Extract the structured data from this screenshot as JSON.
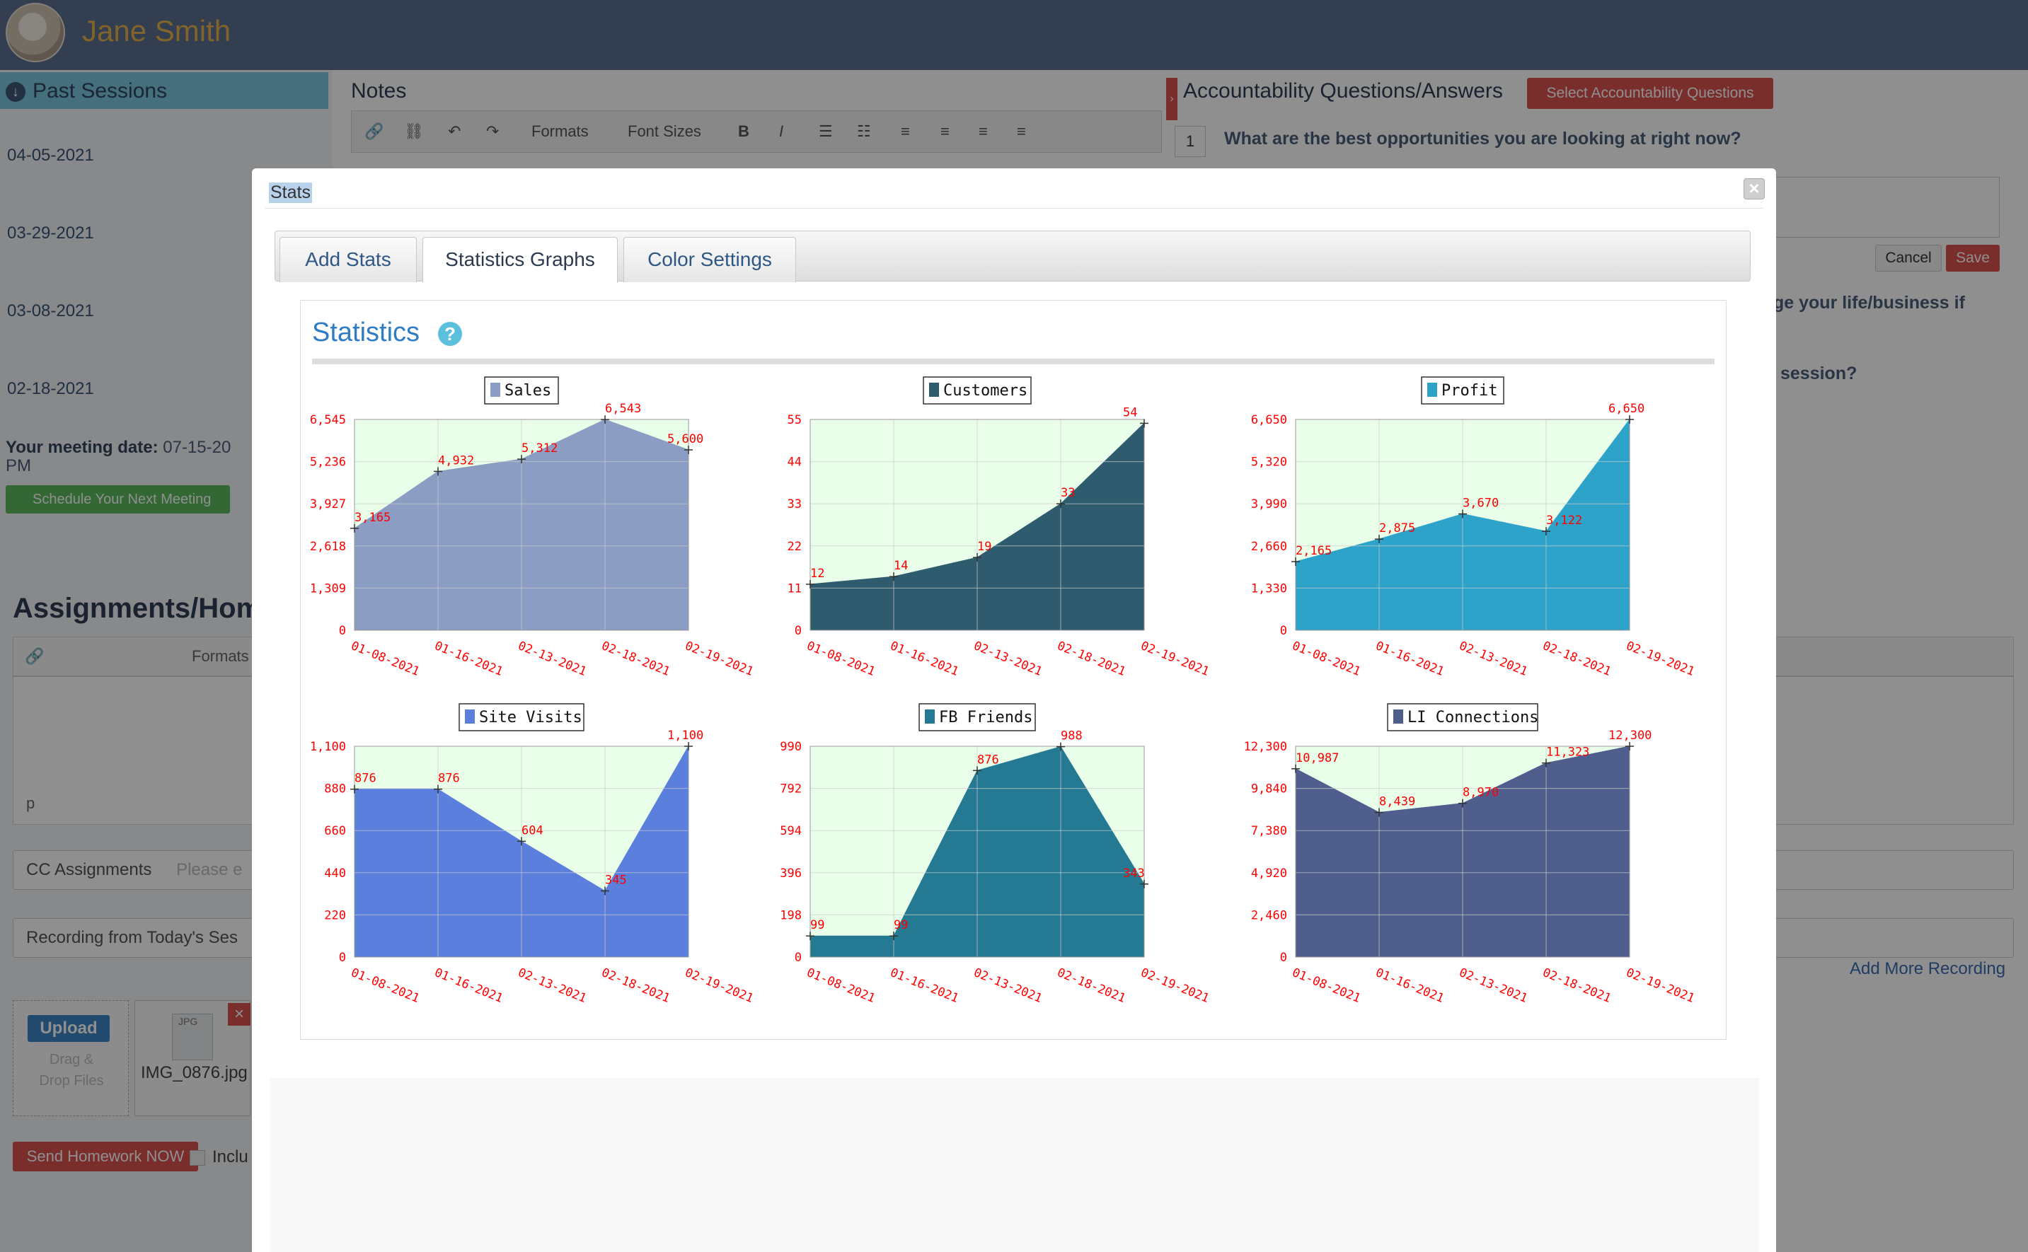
{
  "header": {
    "user_name": "Jane Smith"
  },
  "left": {
    "past_sessions_title": "Past Sessions",
    "sessions": [
      "04-05-2021",
      "03-29-2021",
      "03-08-2021",
      "02-18-2021"
    ],
    "meeting_label": "Your meeting date:",
    "meeting_value": "07-15-20",
    "meeting_suffix": "PM",
    "schedule_button": "Schedule Your Next Meeting",
    "assignments_title": "Assignments/Hom",
    "editor_formats": "Formats",
    "editor_path": "p",
    "cc_label": "CC Assignments",
    "cc_placeholder": "Please e",
    "recording_value": "Recording from Today's Ses",
    "upload_button": "Upload",
    "drag_line1": "Drag &",
    "drag_line2": "Drop Files",
    "file_name": "IMG_0876.jpg",
    "file_type": "JPG",
    "send_button": "Send Homework NOW",
    "include_label": "Inclu"
  },
  "notes": {
    "title": "Notes",
    "formats": "Formats",
    "font_sizes": "Font Sizes"
  },
  "accountability": {
    "title": "Accountability Questions/Answers",
    "select_button": "Select Accountability Questions",
    "q1_number": "1",
    "q1_text": "What are the best opportunities you are looking at right now?",
    "cancel_button": "Cancel",
    "save_button": "Save",
    "partial_q2": "ge your life/business if",
    "partial_q3": "session?",
    "add_more_recording": "Add More Recording"
  },
  "modal": {
    "title": "Stats",
    "close_symbol": "×",
    "tabs": [
      "Add Stats",
      "Statistics Graphs",
      "Color Settings"
    ],
    "active_tab": "Statistics Graphs",
    "section_title": "Statistics",
    "help_symbol": "?"
  },
  "colors": {
    "plot_background": "#eaffe9",
    "value_label": "#ff0000",
    "grid": "#cccccc",
    "accent_red": "#d9534f",
    "header_bg": "#5c6f8f"
  },
  "chart_data": [
    {
      "type": "area",
      "title": "Sales",
      "color": "#8b9dc3",
      "x": [
        "01-08-2021",
        "01-16-2021",
        "02-13-2021",
        "02-18-2021",
        "02-19-2021"
      ],
      "values": [
        3165,
        4932,
        5312,
        6543,
        5600
      ],
      "value_labels": [
        "3,165",
        "4,932",
        "5,312",
        "6,543",
        "5,600"
      ],
      "ylim": [
        0,
        6545
      ],
      "yticks": [
        "0",
        "1,309",
        "2,618",
        "3,927",
        "5,236",
        "6,545"
      ]
    },
    {
      "type": "area",
      "title": "Customers",
      "color": "#2e5c6e",
      "x": [
        "01-08-2021",
        "01-16-2021",
        "02-13-2021",
        "02-18-2021",
        "02-19-2021"
      ],
      "values": [
        12,
        14,
        19,
        33,
        54
      ],
      "value_labels": [
        "12",
        "14",
        "19",
        "33",
        "54"
      ],
      "ylim": [
        0,
        55
      ],
      "yticks": [
        "0",
        "11",
        "22",
        "33",
        "44",
        "55"
      ]
    },
    {
      "type": "area",
      "title": "Profit",
      "color": "#2ea3c9",
      "x": [
        "01-08-2021",
        "01-16-2021",
        "02-13-2021",
        "02-18-2021",
        "02-19-2021"
      ],
      "values": [
        2165,
        2875,
        3670,
        3122,
        6650
      ],
      "value_labels": [
        "2,165",
        "2,875",
        "3,670",
        "3,122",
        "6,650"
      ],
      "ylim": [
        0,
        6650
      ],
      "yticks": [
        "0",
        "1,330",
        "2,660",
        "3,990",
        "5,320",
        "6,650"
      ]
    },
    {
      "type": "area",
      "title": "Site Visits",
      "color": "#5b7fdc",
      "x": [
        "01-08-2021",
        "01-16-2021",
        "02-13-2021",
        "02-18-2021",
        "02-19-2021"
      ],
      "values": [
        876,
        876,
        604,
        345,
        1100
      ],
      "value_labels": [
        "876",
        "876",
        "604",
        "345",
        "1,100"
      ],
      "ylim": [
        0,
        1100
      ],
      "yticks": [
        "0",
        "220",
        "440",
        "660",
        "880",
        "1,100"
      ]
    },
    {
      "type": "area",
      "title": "FB Friends",
      "color": "#257a93",
      "x": [
        "01-08-2021",
        "01-16-2021",
        "02-13-2021",
        "02-18-2021",
        "02-19-2021"
      ],
      "values": [
        99,
        99,
        876,
        988,
        343
      ],
      "value_labels": [
        "99",
        "99",
        "876",
        "988",
        "343"
      ],
      "ylim": [
        0,
        990
      ],
      "yticks": [
        "0",
        "198",
        "396",
        "594",
        "792",
        "990"
      ]
    },
    {
      "type": "area",
      "title": "LI Connections",
      "color": "#4f5e8d",
      "x": [
        "01-08-2021",
        "01-16-2021",
        "02-13-2021",
        "02-18-2021",
        "02-19-2021"
      ],
      "values": [
        10987,
        8439,
        8970,
        11323,
        12300
      ],
      "value_labels": [
        "10,987",
        "8,439",
        "8,970",
        "11,323",
        "12,300"
      ],
      "ylim": [
        0,
        12300
      ],
      "yticks": [
        "0",
        "2,460",
        "4,920",
        "7,380",
        "9,840",
        "12,300"
      ]
    }
  ]
}
